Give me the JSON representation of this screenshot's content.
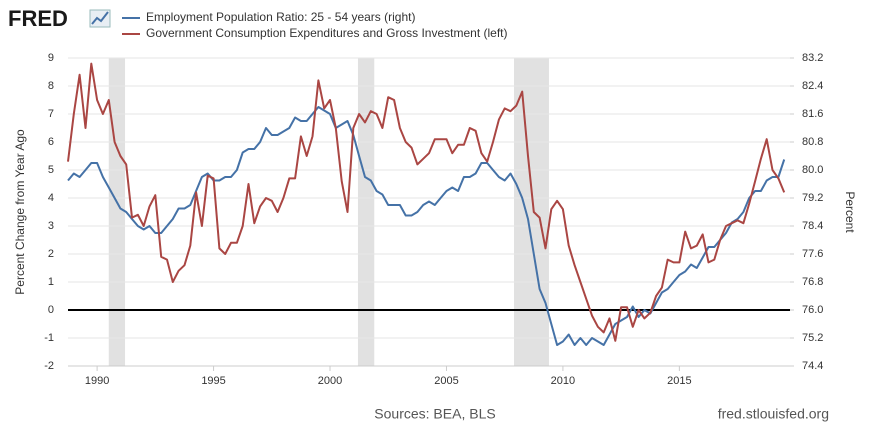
{
  "logo": "FRED",
  "sources": "Sources: BEA, BLS",
  "site": "fred.stlouisfed.org",
  "chart_data": {
    "type": "line",
    "ylabel": "Percent Change from Year Ago",
    "y2label": "Percent",
    "xlim": [
      1988.75,
      2019.75
    ],
    "xticks": [
      1990,
      1995,
      2000,
      2005,
      2010,
      2015
    ],
    "ylim": [
      -2,
      9
    ],
    "yticks": [
      -2,
      -1,
      0,
      1,
      2,
      3,
      4,
      5,
      6,
      7,
      8,
      9
    ],
    "y2lim": [
      74.4,
      83.2
    ],
    "y2ticks": [
      74.4,
      75.2,
      {
        "value": 76,
        "label": "76.0"
      },
      76.8,
      77.6,
      78.4,
      79.2,
      {
        "value": 80,
        "label": "80.0"
      },
      80.8,
      81.6,
      82.4,
      83.2
    ],
    "grid": true,
    "zero_line": 0,
    "recessions": [
      [
        1990.5,
        1991.2
      ],
      [
        2001.2,
        2001.9
      ],
      [
        2007.9,
        2009.4
      ]
    ],
    "x": [
      1988.75,
      1989,
      1989.25,
      1989.5,
      1989.75,
      1990,
      1990.25,
      1990.5,
      1990.75,
      1991,
      1991.25,
      1991.5,
      1991.75,
      1992,
      1992.25,
      1992.5,
      1992.75,
      1993,
      1993.25,
      1993.5,
      1993.75,
      1994,
      1994.25,
      1994.5,
      1994.75,
      1995,
      1995.25,
      1995.5,
      1995.75,
      1996,
      1996.25,
      1996.5,
      1996.75,
      1997,
      1997.25,
      1997.5,
      1997.75,
      1998,
      1998.25,
      1998.5,
      1998.75,
      1999,
      1999.25,
      1999.5,
      1999.75,
      2000,
      2000.25,
      2000.5,
      2000.75,
      2001,
      2001.25,
      2001.5,
      2001.75,
      2002,
      2002.25,
      2002.5,
      2002.75,
      2003,
      2003.25,
      2003.5,
      2003.75,
      2004,
      2004.25,
      2004.5,
      2004.75,
      2005,
      2005.25,
      2005.5,
      2005.75,
      2006,
      2006.25,
      2006.5,
      2006.75,
      2007,
      2007.25,
      2007.5,
      2007.75,
      2008,
      2008.25,
      2008.5,
      2008.75,
      2009,
      2009.25,
      2009.5,
      2009.75,
      2010,
      2010.25,
      2010.5,
      2010.75,
      2011,
      2011.25,
      2011.5,
      2011.75,
      2012,
      2012.25,
      2012.5,
      2012.75,
      2013,
      2013.25,
      2013.5,
      2013.75,
      2014,
      2014.25,
      2014.5,
      2014.75,
      2015,
      2015.25,
      2015.5,
      2015.75,
      2016,
      2016.25,
      2016.5,
      2016.75,
      2017,
      2017.25,
      2017.5,
      2017.75,
      2018,
      2018.25,
      2018.5,
      2018.75,
      2019,
      2019.25,
      2019.5
    ],
    "series": [
      {
        "name": "Employment Population Ratio: 25 - 54 years (right)",
        "color": "#4572a7",
        "axis": "y2",
        "values": [
          79.7,
          79.9,
          79.8,
          80.0,
          80.2,
          80.2,
          79.8,
          79.5,
          79.2,
          78.9,
          78.8,
          78.6,
          78.4,
          78.3,
          78.4,
          78.2,
          78.2,
          78.4,
          78.6,
          78.9,
          78.9,
          79.0,
          79.4,
          79.8,
          79.9,
          79.7,
          79.7,
          79.8,
          79.8,
          80.0,
          80.5,
          80.6,
          80.6,
          80.8,
          81.2,
          81.0,
          81.0,
          81.1,
          81.2,
          81.5,
          81.4,
          81.4,
          81.6,
          81.8,
          81.7,
          81.6,
          81.2,
          81.3,
          81.4,
          81.0,
          80.4,
          79.8,
          79.7,
          79.4,
          79.3,
          79.0,
          79.0,
          79.0,
          78.7,
          78.7,
          78.8,
          79.0,
          79.1,
          79.0,
          79.2,
          79.4,
          79.5,
          79.4,
          79.8,
          79.8,
          79.9,
          80.2,
          80.2,
          80.0,
          79.8,
          79.7,
          79.9,
          79.6,
          79.2,
          78.6,
          77.6,
          76.6,
          76.2,
          75.6,
          75.0,
          75.1,
          75.3,
          75.0,
          75.2,
          75.0,
          75.2,
          75.1,
          75.0,
          75.3,
          75.6,
          75.7,
          75.8,
          76.1,
          75.8,
          76.0,
          75.9,
          76.2,
          76.5,
          76.6,
          76.8,
          77.0,
          77.1,
          77.3,
          77.2,
          77.5,
          77.8,
          77.8,
          78.0,
          78.2,
          78.5,
          78.6,
          78.8,
          79.2,
          79.4,
          79.4,
          79.7,
          79.8,
          79.8,
          80.3
        ]
      },
      {
        "name": "Government Consumption Expenditures and Gross Investment (left)",
        "color": "#aa4643",
        "values": [
          5.3,
          7.0,
          8.4,
          6.5,
          8.8,
          7.5,
          7.0,
          7.5,
          6.0,
          5.5,
          5.2,
          3.3,
          3.4,
          3.0,
          3.7,
          4.1,
          1.9,
          1.8,
          1.0,
          1.4,
          1.6,
          2.3,
          4.2,
          3.0,
          4.8,
          4.7,
          2.2,
          2.0,
          2.4,
          2.4,
          3.0,
          4.5,
          3.1,
          3.7,
          4.0,
          3.9,
          3.5,
          4.0,
          4.7,
          4.7,
          6.2,
          5.5,
          6.2,
          8.2,
          7.2,
          7.5,
          6.5,
          4.6,
          3.5,
          6.5,
          7.0,
          6.7,
          7.1,
          7.0,
          6.5,
          7.6,
          7.5,
          6.5,
          6.0,
          5.8,
          5.2,
          5.4,
          5.6,
          6.1,
          6.1,
          6.1,
          5.6,
          5.9,
          5.9,
          6.5,
          6.4,
          5.6,
          5.3,
          6.0,
          6.8,
          7.2,
          7.1,
          7.3,
          7.8,
          5.5,
          3.5,
          3.3,
          2.2,
          3.6,
          3.9,
          3.6,
          2.3,
          1.6,
          1.0,
          0.4,
          -0.2,
          -0.6,
          -0.8,
          -0.3,
          -1.1,
          0.1,
          0.1,
          -0.6,
          0.0,
          -0.3,
          -0.1,
          0.5,
          0.8,
          1.8,
          1.7,
          1.7,
          2.8,
          2.2,
          2.3,
          2.7,
          1.7,
          1.8,
          2.5,
          3.0,
          3.1,
          3.2,
          3.1,
          3.8,
          4.6,
          5.4,
          6.1,
          5.0,
          4.7,
          4.2
        ]
      }
    ]
  }
}
